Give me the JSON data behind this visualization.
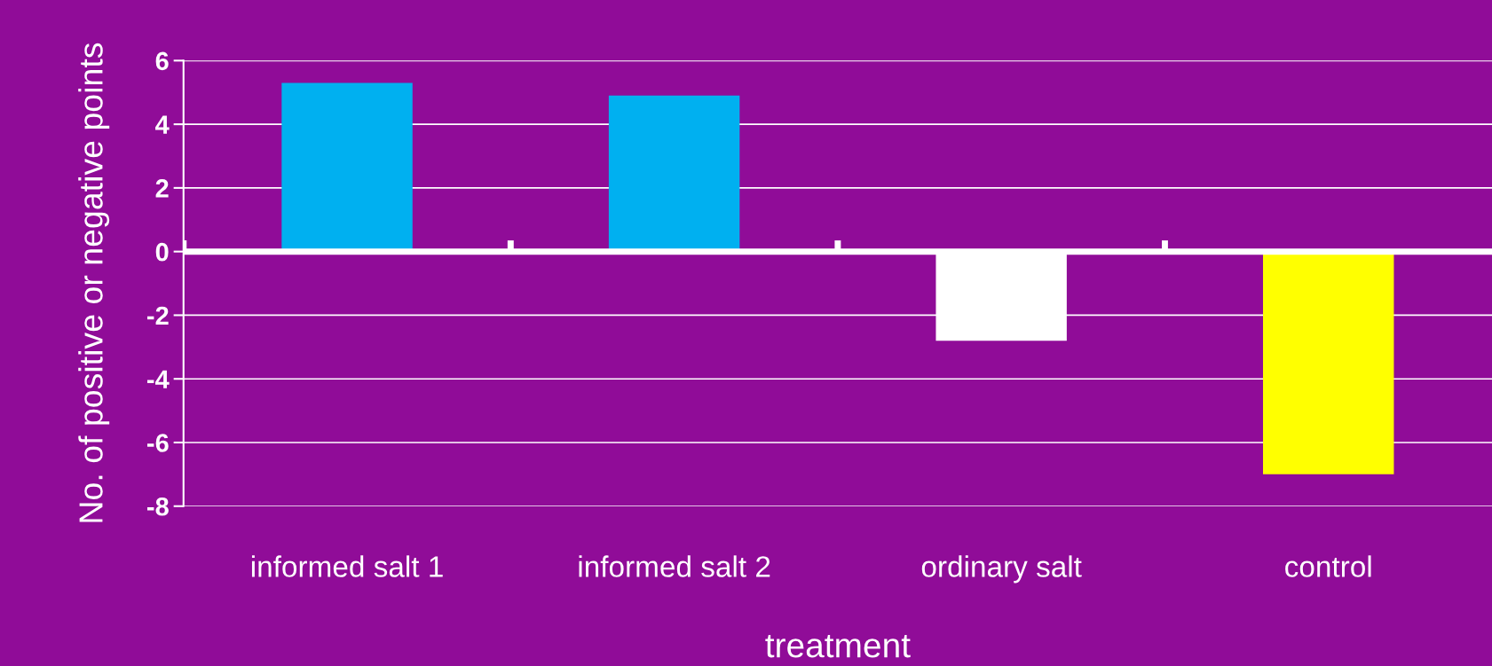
{
  "chart_data": {
    "type": "bar",
    "xlabel": "treatment",
    "ylabel": "No. of positive or negative points",
    "categories": [
      "informed salt 1",
      "informed salt 2",
      "ordinary salt",
      "control"
    ],
    "values": [
      5.3,
      4.9,
      -2.8,
      -7.0
    ],
    "colors": [
      "#00b0f0",
      "#00b0f0",
      "#ffffff",
      "#ffff00"
    ],
    "ylim": [
      -8,
      6
    ],
    "yticks": [
      -8,
      -6,
      -4,
      -2,
      0,
      2,
      4,
      6
    ],
    "grid": "y",
    "legend": false
  }
}
